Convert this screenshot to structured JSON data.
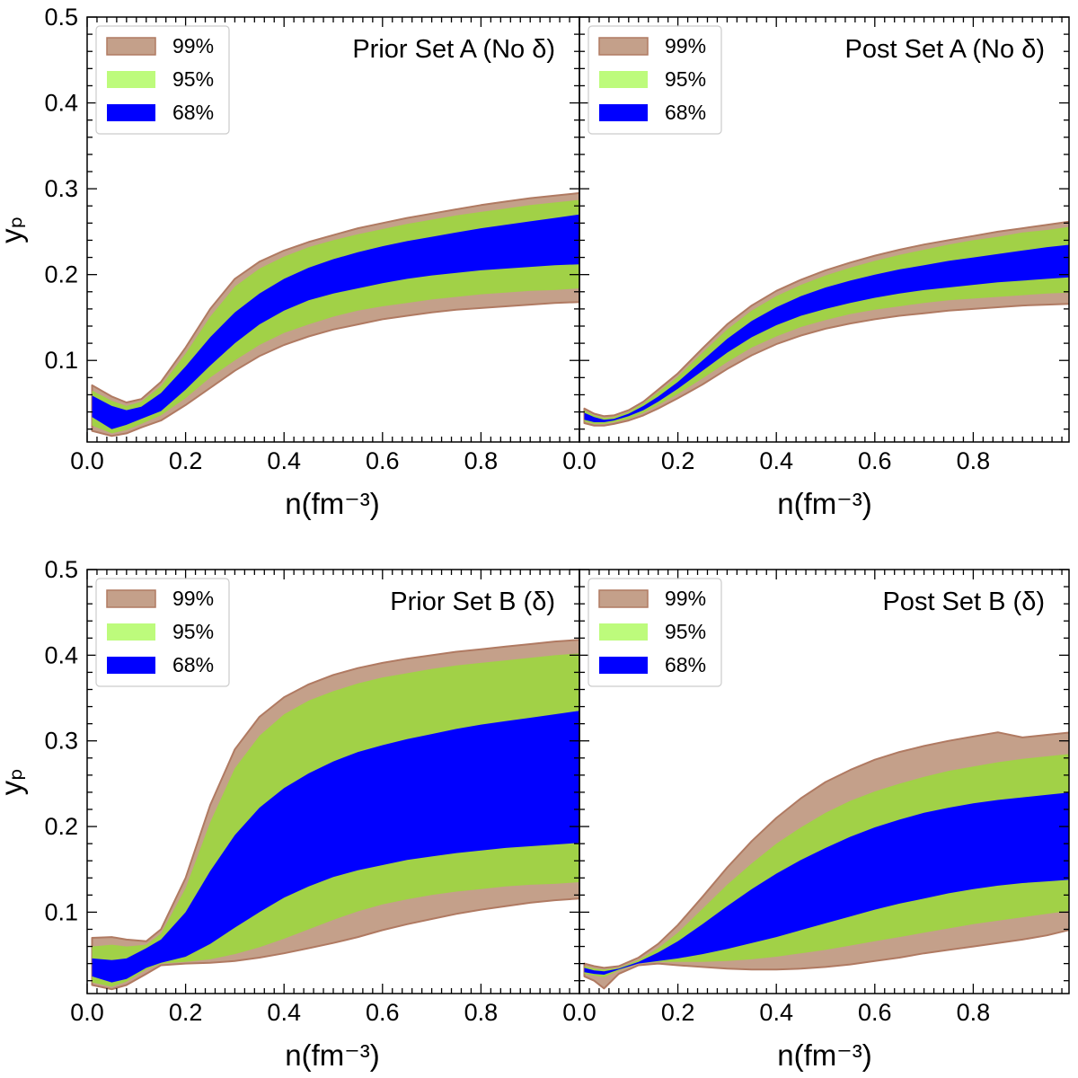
{
  "colors": {
    "band_99": "#c4a08a",
    "band_99_edge": "#b07a62",
    "band_95": "#a1d147",
    "band_95_legend": "#bdfb7c",
    "band_68": "#0000ff",
    "axis": "#000000"
  },
  "chart_data": [
    {
      "type": "area",
      "title": "Prior Set A (No δ)",
      "xlabel": "n(fm⁻³)",
      "ylabel": "yₚ",
      "xlim": [
        0.0,
        1.0
      ],
      "ylim": [
        0.005,
        0.5
      ],
      "xticks": [
        "0.0",
        "0.2",
        "0.4",
        "0.6",
        "0.8"
      ],
      "yticks": [
        "0.1",
        "0.2",
        "0.3",
        "0.4",
        "0.5"
      ],
      "legend": [
        {
          "label": "99%",
          "band": "99"
        },
        {
          "label": "95%",
          "band": "95"
        },
        {
          "label": "68%",
          "band": "68"
        }
      ],
      "x": [
        0.01,
        0.05,
        0.08,
        0.11,
        0.15,
        0.2,
        0.25,
        0.3,
        0.35,
        0.4,
        0.45,
        0.5,
        0.55,
        0.6,
        0.65,
        0.7,
        0.75,
        0.8,
        0.85,
        0.9,
        0.95,
        1.0
      ],
      "series": [
        {
          "name": "99%",
          "lower": [
            0.018,
            0.012,
            0.015,
            0.022,
            0.03,
            0.048,
            0.068,
            0.088,
            0.105,
            0.118,
            0.128,
            0.136,
            0.142,
            0.148,
            0.152,
            0.156,
            0.159,
            0.161,
            0.163,
            0.165,
            0.167,
            0.168
          ],
          "upper": [
            0.071,
            0.058,
            0.051,
            0.055,
            0.075,
            0.115,
            0.16,
            0.195,
            0.215,
            0.228,
            0.238,
            0.246,
            0.254,
            0.26,
            0.266,
            0.271,
            0.276,
            0.281,
            0.285,
            0.289,
            0.292,
            0.295
          ]
        },
        {
          "name": "95%",
          "lower": [
            0.024,
            0.015,
            0.019,
            0.026,
            0.036,
            0.056,
            0.08,
            0.1,
            0.118,
            0.132,
            0.142,
            0.151,
            0.158,
            0.163,
            0.167,
            0.171,
            0.174,
            0.177,
            0.179,
            0.181,
            0.182,
            0.184
          ],
          "upper": [
            0.065,
            0.053,
            0.047,
            0.052,
            0.07,
            0.108,
            0.151,
            0.186,
            0.207,
            0.221,
            0.232,
            0.24,
            0.247,
            0.253,
            0.259,
            0.264,
            0.269,
            0.273,
            0.277,
            0.281,
            0.284,
            0.287
          ]
        },
        {
          "name": "68%",
          "lower": [
            0.034,
            0.02,
            0.025,
            0.032,
            0.041,
            0.066,
            0.094,
            0.12,
            0.142,
            0.158,
            0.17,
            0.178,
            0.184,
            0.19,
            0.195,
            0.199,
            0.202,
            0.205,
            0.207,
            0.209,
            0.211,
            0.212
          ],
          "upper": [
            0.059,
            0.047,
            0.042,
            0.046,
            0.062,
            0.093,
            0.127,
            0.156,
            0.178,
            0.195,
            0.208,
            0.218,
            0.226,
            0.233,
            0.239,
            0.244,
            0.249,
            0.254,
            0.258,
            0.262,
            0.266,
            0.27
          ]
        }
      ]
    },
    {
      "type": "area",
      "title": "Post Set A (No δ)",
      "xlabel": "n(fm⁻³)",
      "ylabel": "",
      "xlim": [
        0.0,
        1.0
      ],
      "ylim": [
        0.005,
        0.5
      ],
      "xticks": [
        "0.0",
        "0.2",
        "0.4",
        "0.6",
        "0.8"
      ],
      "yticks": [],
      "legend": [
        {
          "label": "99%",
          "band": "99"
        },
        {
          "label": "95%",
          "band": "95"
        },
        {
          "label": "68%",
          "band": "68"
        }
      ],
      "x": [
        0.01,
        0.03,
        0.05,
        0.07,
        0.1,
        0.13,
        0.16,
        0.2,
        0.25,
        0.3,
        0.35,
        0.4,
        0.45,
        0.5,
        0.55,
        0.6,
        0.65,
        0.7,
        0.75,
        0.8,
        0.85,
        0.9,
        0.95,
        1.0
      ],
      "series": [
        {
          "name": "99%",
          "lower": [
            0.027,
            0.024,
            0.024,
            0.026,
            0.03,
            0.036,
            0.044,
            0.056,
            0.072,
            0.09,
            0.106,
            0.119,
            0.129,
            0.137,
            0.143,
            0.148,
            0.152,
            0.155,
            0.158,
            0.16,
            0.162,
            0.164,
            0.165,
            0.166
          ],
          "upper": [
            0.044,
            0.038,
            0.035,
            0.036,
            0.042,
            0.052,
            0.066,
            0.085,
            0.114,
            0.142,
            0.164,
            0.181,
            0.194,
            0.205,
            0.214,
            0.222,
            0.229,
            0.235,
            0.24,
            0.245,
            0.25,
            0.254,
            0.258,
            0.262
          ]
        },
        {
          "name": "95%",
          "lower": [
            0.029,
            0.026,
            0.026,
            0.028,
            0.032,
            0.039,
            0.048,
            0.061,
            0.079,
            0.098,
            0.115,
            0.128,
            0.139,
            0.147,
            0.154,
            0.159,
            0.163,
            0.167,
            0.17,
            0.172,
            0.174,
            0.176,
            0.178,
            0.179
          ],
          "upper": [
            0.042,
            0.036,
            0.033,
            0.034,
            0.04,
            0.05,
            0.063,
            0.081,
            0.109,
            0.136,
            0.158,
            0.175,
            0.188,
            0.199,
            0.208,
            0.216,
            0.223,
            0.229,
            0.235,
            0.24,
            0.244,
            0.249,
            0.252,
            0.256
          ]
        },
        {
          "name": "68%",
          "lower": [
            0.031,
            0.028,
            0.028,
            0.03,
            0.035,
            0.042,
            0.052,
            0.067,
            0.088,
            0.109,
            0.127,
            0.141,
            0.152,
            0.16,
            0.167,
            0.173,
            0.178,
            0.182,
            0.185,
            0.188,
            0.191,
            0.193,
            0.195,
            0.197
          ],
          "upper": [
            0.039,
            0.034,
            0.031,
            0.032,
            0.038,
            0.047,
            0.058,
            0.075,
            0.1,
            0.125,
            0.146,
            0.162,
            0.175,
            0.185,
            0.193,
            0.2,
            0.206,
            0.211,
            0.216,
            0.22,
            0.224,
            0.228,
            0.232,
            0.235
          ]
        }
      ]
    },
    {
      "type": "area",
      "title": "Prior Set B (δ)",
      "xlabel": "n(fm⁻³)",
      "ylabel": "yₚ",
      "xlim": [
        0.0,
        1.0
      ],
      "ylim": [
        0.005,
        0.5
      ],
      "xticks": [
        "0.0",
        "0.2",
        "0.4",
        "0.6",
        "0.8"
      ],
      "yticks": [
        "0.1",
        "0.2",
        "0.3",
        "0.4",
        "0.5"
      ],
      "legend": [
        {
          "label": "99%",
          "band": "99"
        },
        {
          "label": "95%",
          "band": "95"
        },
        {
          "label": "68%",
          "band": "68"
        }
      ],
      "x": [
        0.01,
        0.05,
        0.08,
        0.12,
        0.15,
        0.2,
        0.25,
        0.3,
        0.35,
        0.4,
        0.45,
        0.5,
        0.55,
        0.6,
        0.65,
        0.7,
        0.75,
        0.8,
        0.85,
        0.9,
        0.95,
        1.0
      ],
      "series": [
        {
          "name": "99%",
          "lower": [
            0.015,
            0.01,
            0.015,
            0.028,
            0.038,
            0.04,
            0.041,
            0.043,
            0.047,
            0.052,
            0.058,
            0.064,
            0.071,
            0.079,
            0.086,
            0.092,
            0.098,
            0.103,
            0.107,
            0.111,
            0.114,
            0.116
          ],
          "upper": [
            0.07,
            0.071,
            0.068,
            0.066,
            0.08,
            0.14,
            0.225,
            0.29,
            0.328,
            0.351,
            0.366,
            0.377,
            0.385,
            0.391,
            0.396,
            0.4,
            0.404,
            0.407,
            0.41,
            0.413,
            0.416,
            0.418
          ]
        },
        {
          "name": "95%",
          "lower": [
            0.018,
            0.013,
            0.019,
            0.033,
            0.04,
            0.042,
            0.045,
            0.051,
            0.059,
            0.069,
            0.08,
            0.091,
            0.101,
            0.109,
            0.115,
            0.12,
            0.124,
            0.127,
            0.13,
            0.132,
            0.133,
            0.135
          ],
          "upper": [
            0.06,
            0.062,
            0.06,
            0.062,
            0.075,
            0.128,
            0.205,
            0.268,
            0.306,
            0.331,
            0.347,
            0.358,
            0.367,
            0.374,
            0.379,
            0.384,
            0.388,
            0.391,
            0.394,
            0.397,
            0.4,
            0.402
          ]
        },
        {
          "name": "68%",
          "lower": [
            0.025,
            0.018,
            0.022,
            0.035,
            0.041,
            0.048,
            0.063,
            0.082,
            0.1,
            0.117,
            0.13,
            0.141,
            0.149,
            0.155,
            0.161,
            0.165,
            0.169,
            0.172,
            0.175,
            0.177,
            0.179,
            0.181
          ],
          "upper": [
            0.046,
            0.044,
            0.046,
            0.058,
            0.068,
            0.1,
            0.148,
            0.19,
            0.222,
            0.245,
            0.262,
            0.276,
            0.287,
            0.295,
            0.302,
            0.308,
            0.314,
            0.319,
            0.323,
            0.327,
            0.331,
            0.335
          ]
        }
      ]
    },
    {
      "type": "area",
      "title": "Post Set B (δ)",
      "xlabel": "n(fm⁻³)",
      "ylabel": "",
      "xlim": [
        0.0,
        1.0
      ],
      "ylim": [
        0.005,
        0.5
      ],
      "xticks": [
        "0.0",
        "0.2",
        "0.4",
        "0.6",
        "0.8"
      ],
      "yticks": [],
      "legend": [
        {
          "label": "99%",
          "band": "99"
        },
        {
          "label": "95%",
          "band": "95"
        },
        {
          "label": "68%",
          "band": "68"
        }
      ],
      "x": [
        0.01,
        0.03,
        0.05,
        0.08,
        0.12,
        0.16,
        0.2,
        0.25,
        0.3,
        0.35,
        0.4,
        0.45,
        0.5,
        0.55,
        0.6,
        0.65,
        0.7,
        0.75,
        0.8,
        0.85,
        0.9,
        0.95,
        1.0
      ],
      "series": [
        {
          "name": "99%",
          "lower": [
            0.025,
            0.02,
            0.011,
            0.028,
            0.038,
            0.04,
            0.038,
            0.036,
            0.034,
            0.033,
            0.033,
            0.034,
            0.036,
            0.039,
            0.043,
            0.047,
            0.052,
            0.056,
            0.06,
            0.064,
            0.068,
            0.073,
            0.08
          ],
          "upper": [
            0.04,
            0.037,
            0.035,
            0.037,
            0.047,
            0.063,
            0.085,
            0.118,
            0.152,
            0.183,
            0.21,
            0.233,
            0.252,
            0.266,
            0.278,
            0.287,
            0.294,
            0.3,
            0.305,
            0.31,
            0.304,
            0.307,
            0.31
          ]
        },
        {
          "name": "95%",
          "lower": [
            0.028,
            0.026,
            0.024,
            0.032,
            0.04,
            0.042,
            0.042,
            0.042,
            0.043,
            0.045,
            0.048,
            0.052,
            0.056,
            0.061,
            0.066,
            0.071,
            0.076,
            0.081,
            0.086,
            0.09,
            0.094,
            0.098,
            0.102
          ],
          "upper": [
            0.037,
            0.034,
            0.033,
            0.035,
            0.044,
            0.058,
            0.076,
            0.104,
            0.132,
            0.157,
            0.18,
            0.199,
            0.216,
            0.23,
            0.241,
            0.25,
            0.258,
            0.265,
            0.27,
            0.275,
            0.279,
            0.282,
            0.285
          ]
        },
        {
          "name": "68%",
          "lower": [
            0.03,
            0.028,
            0.027,
            0.033,
            0.04,
            0.043,
            0.046,
            0.051,
            0.057,
            0.064,
            0.071,
            0.079,
            0.087,
            0.095,
            0.103,
            0.11,
            0.116,
            0.122,
            0.127,
            0.131,
            0.134,
            0.136,
            0.138
          ],
          "upper": [
            0.035,
            0.032,
            0.031,
            0.034,
            0.042,
            0.053,
            0.066,
            0.086,
            0.107,
            0.127,
            0.145,
            0.161,
            0.175,
            0.188,
            0.199,
            0.208,
            0.216,
            0.222,
            0.227,
            0.231,
            0.234,
            0.237,
            0.24
          ]
        }
      ]
    }
  ]
}
